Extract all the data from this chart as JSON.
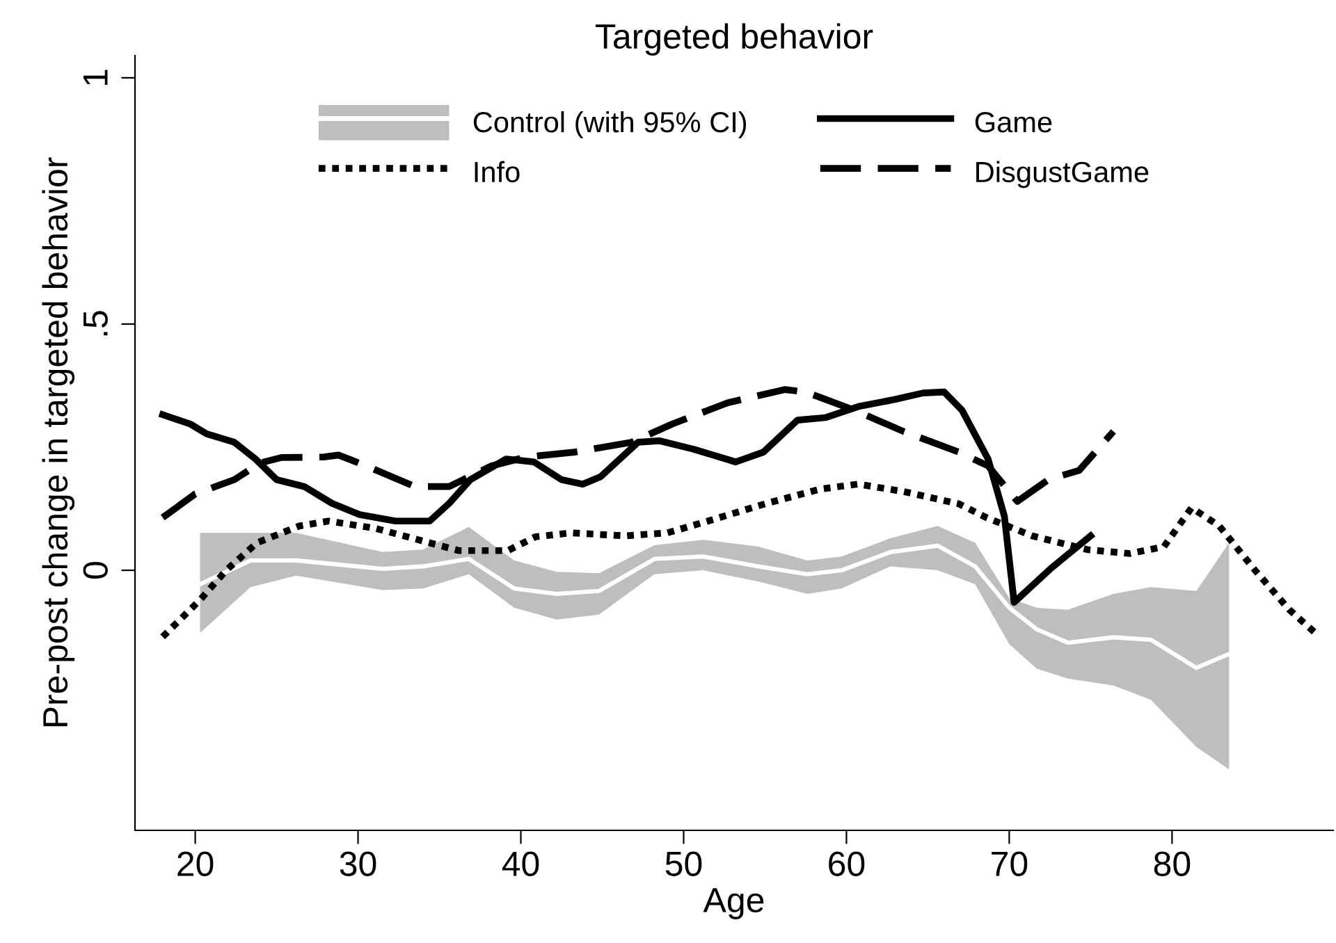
{
  "chart_data": {
    "type": "line",
    "title": "Targeted behavior",
    "xlabel": "Age",
    "ylabel": "Pre-post change in targeted behavior",
    "xlim": [
      16.3,
      89.9
    ],
    "ylim": [
      -0.528,
      1.045
    ],
    "xticks": [
      20,
      30,
      40,
      50,
      60,
      70,
      80
    ],
    "yticks": [
      {
        "value": 0,
        "label": "0"
      },
      {
        "value": 0.5,
        "label": ".5"
      },
      {
        "value": 1,
        "label": "1"
      }
    ],
    "grid": false,
    "legend": "top",
    "marker": "none",
    "series": [
      {
        "name": "Control (with 95% CI)",
        "color": "#ffffff",
        "line_style": "solid",
        "x": [
          20.3,
          23.4,
          26.2,
          31.5,
          34,
          36.8,
          39.6,
          42.2,
          44.8,
          48.2,
          51.2,
          54.6,
          57.6,
          59.7,
          62.7,
          65.6,
          67.9,
          70,
          71.7,
          73.6,
          76.4,
          78.7,
          81.5,
          83.5
        ],
        "values": [
          -0.028,
          0.02,
          0.02,
          0.003,
          0.008,
          0.023,
          -0.037,
          -0.048,
          -0.042,
          0.023,
          0.028,
          0.008,
          -0.008,
          0,
          0.037,
          0.05,
          0.008,
          -0.076,
          -0.12,
          -0.147,
          -0.136,
          -0.141,
          -0.198,
          -0.17
        ],
        "lower": [
          -0.127,
          -0.034,
          -0.011,
          -0.04,
          -0.037,
          -0.008,
          -0.076,
          -0.1,
          -0.09,
          -0.008,
          0,
          -0.023,
          -0.048,
          -0.037,
          0.008,
          0.0,
          -0.028,
          -0.15,
          -0.2,
          -0.22,
          -0.234,
          -0.263,
          -0.359,
          -0.404
        ],
        "upper": [
          0.076,
          0.076,
          0.076,
          0.037,
          0.042,
          0.088,
          0.02,
          -0.003,
          -0.006,
          0.051,
          0.062,
          0.048,
          0.02,
          0.028,
          0.065,
          0.09,
          0.056,
          -0.056,
          -0.076,
          -0.08,
          -0.048,
          -0.034,
          -0.042,
          0.056
        ]
      },
      {
        "name": "Info",
        "color": "#000000",
        "line_style": "dotted",
        "x": [
          18,
          20.3,
          21.9,
          23.8,
          26.4,
          28.2,
          31.1,
          33.7,
          36.2,
          39.2,
          40.9,
          43.1,
          46.4,
          49,
          51.5,
          55,
          58.4,
          60.7,
          63.5,
          66.9,
          68.6,
          71.4,
          74.8,
          77.4,
          79.5,
          81.2,
          82.9,
          85.1,
          87.2,
          89
        ],
        "values": [
          -0.135,
          -0.06,
          0,
          0.056,
          0.09,
          0.1,
          0.085,
          0.062,
          0.04,
          0.04,
          0.068,
          0.076,
          0.07,
          0.076,
          0.1,
          0.135,
          0.165,
          0.175,
          0.16,
          0.135,
          0.107,
          0.07,
          0.042,
          0.034,
          0.048,
          0.127,
          0.09,
          0,
          -0.08,
          -0.133
        ]
      },
      {
        "name": "Game",
        "color": "#000000",
        "line_style": "solid",
        "x": [
          18,
          19.7,
          20.7,
          22.4,
          23.7,
          25,
          26.7,
          28.4,
          30.1,
          32.3,
          34.4,
          35.6,
          36.9,
          39.1,
          40.8,
          42.5,
          43.8,
          44.9,
          47.2,
          48.5,
          50.6,
          53.2,
          54.9,
          57,
          58.7,
          60.8,
          63,
          64.7,
          66,
          67.1,
          68.7,
          69.7,
          70.3,
          72.6,
          75
        ],
        "values": [
          0.316,
          0.297,
          0.277,
          0.26,
          0.226,
          0.184,
          0.17,
          0.136,
          0.113,
          0.1,
          0.1,
          0.136,
          0.184,
          0.226,
          0.22,
          0.184,
          0.175,
          0.19,
          0.26,
          0.263,
          0.246,
          0.22,
          0.24,
          0.305,
          0.31,
          0.333,
          0.347,
          0.36,
          0.362,
          0.325,
          0.226,
          0.11,
          -0.065,
          0.005,
          0.07
        ]
      },
      {
        "name": "DisgustGame",
        "color": "#000000",
        "line_style": "dashed",
        "x": [
          18,
          20,
          22.4,
          24,
          25.3,
          27.9,
          28.8,
          30.5,
          33.5,
          35.6,
          38.2,
          40.3,
          43.3,
          46.8,
          49.3,
          52.7,
          56.2,
          57.5,
          60.5,
          63.5,
          66.9,
          68.7,
          70.5,
          72.4,
          74.3,
          76.4
        ],
        "values": [
          0.107,
          0.155,
          0.184,
          0.218,
          0.229,
          0.23,
          0.234,
          0.212,
          0.17,
          0.17,
          0.212,
          0.23,
          0.24,
          0.26,
          0.297,
          0.34,
          0.367,
          0.362,
          0.325,
          0.282,
          0.24,
          0.212,
          0.14,
          0.184,
          0.203,
          0.282
        ]
      }
    ]
  }
}
